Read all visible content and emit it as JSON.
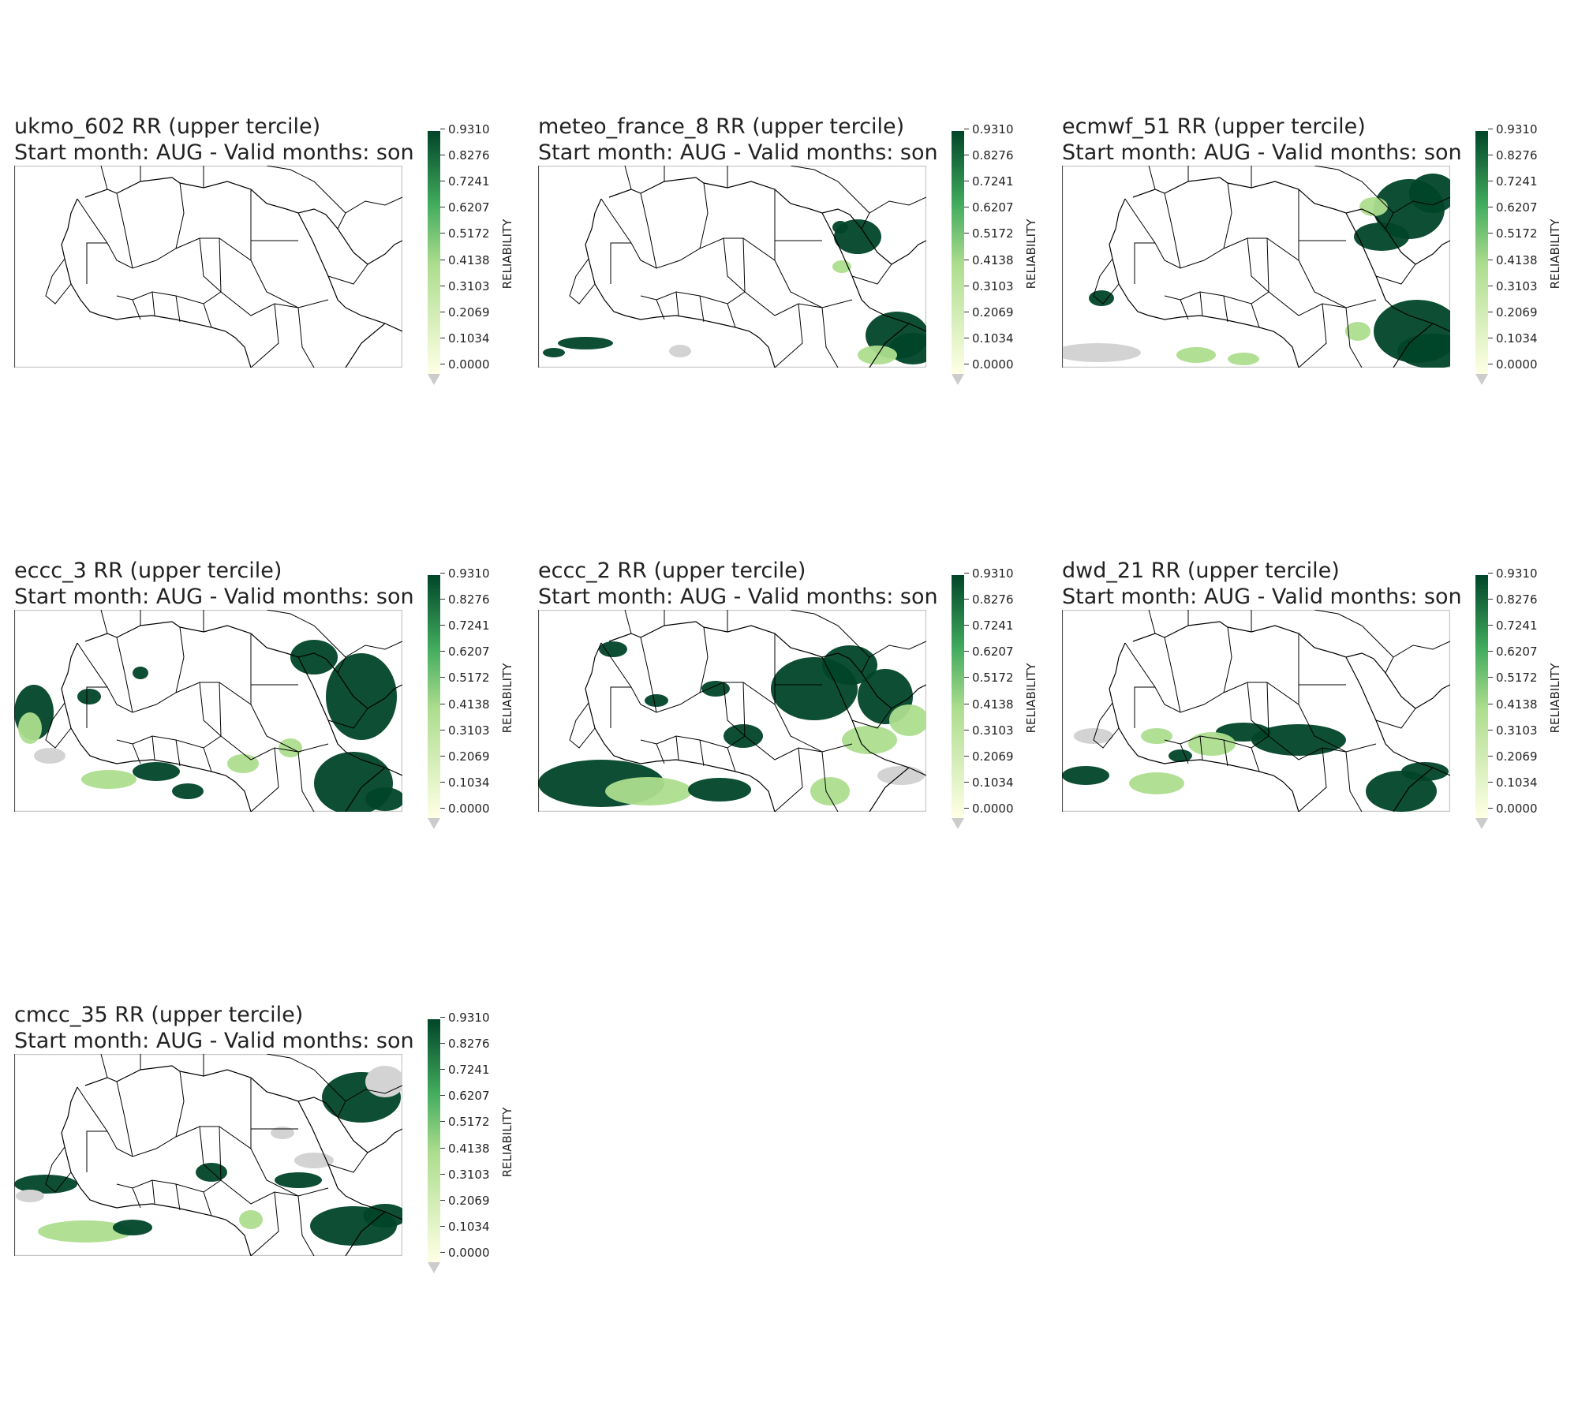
{
  "figure": {
    "colorbar_label": "RELIABILITY",
    "colorbar_ticks": [
      "0.0000",
      "0.1034",
      "0.2069",
      "0.3103",
      "0.4138",
      "0.5172",
      "0.6207",
      "0.7241",
      "0.8276",
      "0.9310"
    ],
    "colors": {
      "low": "#ffffe5",
      "mid": "#addd8e",
      "high": "#004529",
      "missing": "#d3d3d3",
      "border": "#000000",
      "frame": "#c8c8c8"
    }
  },
  "panels": [
    {
      "title": "ukmo_602  RR (upper tercile)",
      "subtitle": "Start month: AUG - Valid months: son"
    },
    {
      "title": "meteo_france_8  RR (upper tercile)",
      "subtitle": "Start month: AUG - Valid months: son"
    },
    {
      "title": "ecmwf_51  RR (upper tercile)",
      "subtitle": "Start month: AUG - Valid months: son"
    },
    {
      "title": "eccc_3  RR (upper tercile)",
      "subtitle": "Start month: AUG - Valid months: son"
    },
    {
      "title": "eccc_2  RR (upper tercile)",
      "subtitle": "Start month: AUG - Valid months: son"
    },
    {
      "title": "dwd_21  RR (upper tercile)",
      "subtitle": "Start month: AUG - Valid months: son"
    },
    {
      "title": "cmcc_35  RR (upper tercile)",
      "subtitle": "Start month: AUG - Valid months: son"
    }
  ]
}
